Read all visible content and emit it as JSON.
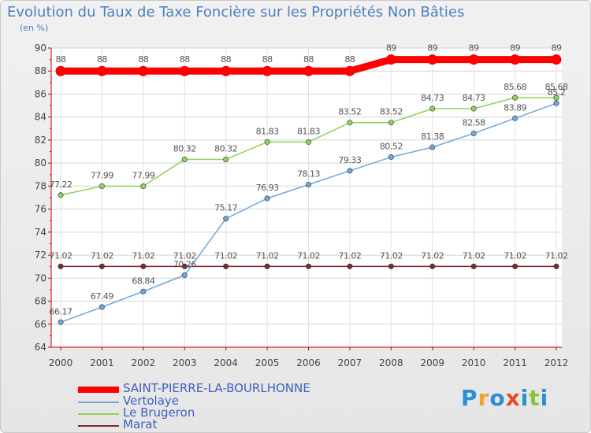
{
  "chart_data": {
    "type": "line",
    "title": "Evolution du Taux de Taxe Foncière sur les Propriétés Non Bâties",
    "ylabel": "(en %)",
    "xlabel": "",
    "categories": [
      "2000",
      "2001",
      "2002",
      "2003",
      "2004",
      "2005",
      "2006",
      "2007",
      "2008",
      "2009",
      "2010",
      "2011",
      "2012"
    ],
    "ylim": [
      64,
      90
    ],
    "yticks": [
      64,
      66,
      68,
      70,
      72,
      74,
      76,
      78,
      80,
      82,
      84,
      86,
      88,
      90
    ],
    "series": [
      {
        "name": "SAINT-PIERRE-LA-BOURLHONNE",
        "color": "#ff0000",
        "values": [
          88,
          88,
          88,
          88,
          88,
          88,
          88,
          88,
          89,
          89,
          89,
          89,
          89
        ],
        "labels": [
          "88",
          "88",
          "88",
          "88",
          "88",
          "88",
          "88",
          "88",
          "89",
          "89",
          "89",
          "89",
          "89"
        ]
      },
      {
        "name": "Vertolaye",
        "color": "#6fa8dc",
        "values": [
          66.17,
          67.49,
          68.84,
          70.26,
          75.17,
          76.93,
          78.13,
          79.33,
          80.52,
          81.38,
          82.58,
          83.89,
          85.2
        ],
        "labels": [
          "66.17",
          "67.49",
          "68.84",
          "70.26",
          "75.17",
          "76.93",
          "78.13",
          "79.33",
          "80.52",
          "81.38",
          "82.58",
          "83.89",
          "85.2"
        ]
      },
      {
        "name": "Le Brugeron",
        "color": "#8fd35a",
        "values": [
          77.22,
          77.99,
          77.99,
          80.32,
          80.32,
          81.83,
          81.83,
          83.52,
          83.52,
          84.73,
          84.73,
          85.68,
          85.68
        ],
        "labels": [
          "77.22",
          "77.99",
          "77.99",
          "80.32",
          "80.32",
          "81.83",
          "81.83",
          "83.52",
          "83.52",
          "84.73",
          "84.73",
          "85.68",
          "85.68"
        ]
      },
      {
        "name": "Marat",
        "color": "#7a2a2a",
        "values": [
          71.02,
          71.02,
          71.02,
          71.02,
          71.02,
          71.02,
          71.02,
          71.02,
          71.02,
          71.02,
          71.02,
          71.02,
          71.02
        ],
        "labels": [
          "71.02",
          "71.02",
          "71.02",
          "71.02",
          "71.02",
          "71.02",
          "71.02",
          "71.02",
          "71.02",
          "71.02",
          "71.02",
          "71.02",
          "71.02"
        ]
      }
    ]
  },
  "logo": {
    "letters": [
      "P",
      "r",
      "o",
      "x",
      "i",
      "t",
      "i"
    ],
    "colors": [
      "#2a8fd8",
      "#f2a12e",
      "#2a8fd8",
      "#e24a2a",
      "#2a8fd8",
      "#8ac43a",
      "#2a8fd8"
    ]
  }
}
